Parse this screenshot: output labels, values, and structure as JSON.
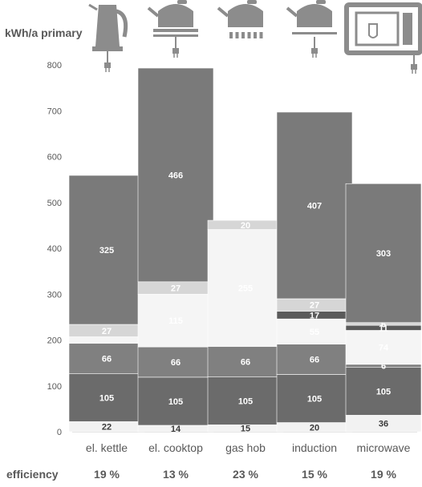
{
  "chart_data": {
    "type": "bar",
    "stacked": true,
    "ylabel": "kWh/a primary",
    "ylim": [
      0,
      800
    ],
    "yticks": [
      0,
      100,
      200,
      300,
      400,
      500,
      600,
      700,
      800
    ],
    "grid": false,
    "categories": [
      "el. kettle",
      "el. cooktop",
      "gas hob",
      "induction",
      "microwave"
    ],
    "icons": [
      "kettle-icon",
      "cooktop-pot-icon",
      "gas-hob-pot-icon",
      "induction-pot-icon",
      "microwave-icon"
    ],
    "efficiency_label": "efficiency",
    "efficiency": [
      "19 %",
      "13 %",
      "23 %",
      "15 %",
      "19 %"
    ],
    "stacks": [
      [
        {
          "value": 22,
          "label": "22",
          "color": "#f2f2f2",
          "text": "#3a3a3a"
        },
        {
          "value": 105,
          "label": "105",
          "color": "#6b6b6b",
          "text": "#ffffff"
        },
        {
          "value": 66,
          "label": "66",
          "color": "#808080",
          "text": "#ffffff"
        },
        {
          "value": 14,
          "label": "",
          "color": "#f5f5f5",
          "text": "#ffffff"
        },
        {
          "value": 27,
          "label": "27",
          "color": "#d6d6d6",
          "text": "#ffffff"
        },
        {
          "value": 325,
          "label": "325",
          "color": "#7a7a7a",
          "text": "#ffffff"
        }
      ],
      [
        {
          "value": 14,
          "label": "14",
          "color": "#f2f2f2",
          "text": "#3a3a3a"
        },
        {
          "value": 105,
          "label": "105",
          "color": "#6b6b6b",
          "text": "#ffffff"
        },
        {
          "value": 66,
          "label": "66",
          "color": "#808080",
          "text": "#ffffff"
        },
        {
          "value": 115,
          "label": "115",
          "color": "#f5f5f5",
          "text": "#ffffff"
        },
        {
          "value": 27,
          "label": "27",
          "color": "#d6d6d6",
          "text": "#ffffff"
        },
        {
          "value": 466,
          "label": "466",
          "color": "#7a7a7a",
          "text": "#ffffff"
        }
      ],
      [
        {
          "value": 15,
          "label": "15",
          "color": "#f2f2f2",
          "text": "#3a3a3a"
        },
        {
          "value": 105,
          "label": "105",
          "color": "#6b6b6b",
          "text": "#ffffff"
        },
        {
          "value": 66,
          "label": "66",
          "color": "#808080",
          "text": "#ffffff"
        },
        {
          "value": 255,
          "label": "255",
          "color": "#f5f5f5",
          "text": "#ffffff"
        },
        {
          "value": 20,
          "label": "20",
          "color": "#d6d6d6",
          "text": "#ffffff"
        }
      ],
      [
        {
          "value": 20,
          "label": "20",
          "color": "#f2f2f2",
          "text": "#3a3a3a"
        },
        {
          "value": 105,
          "label": "105",
          "color": "#6b6b6b",
          "text": "#ffffff"
        },
        {
          "value": 66,
          "label": "66",
          "color": "#808080",
          "text": "#ffffff"
        },
        {
          "value": 55,
          "label": "55",
          "color": "#f5f5f5",
          "text": "#ffffff"
        },
        {
          "value": 17,
          "label": "17",
          "color": "#5a5a5a",
          "text": "#ffffff"
        },
        {
          "value": 27,
          "label": "27",
          "color": "#d6d6d6",
          "text": "#ffffff"
        },
        {
          "value": 407,
          "label": "407",
          "color": "#7a7a7a",
          "text": "#ffffff"
        }
      ],
      [
        {
          "value": 36,
          "label": "36",
          "color": "#f2f2f2",
          "text": "#3a3a3a"
        },
        {
          "value": 105,
          "label": "105",
          "color": "#6b6b6b",
          "text": "#ffffff"
        },
        {
          "value": 6,
          "label": "6",
          "color": "#808080",
          "text": "#ffffff"
        },
        {
          "value": 74,
          "label": "74",
          "color": "#f5f5f5",
          "text": "#ffffff"
        },
        {
          "value": 11,
          "label": "11",
          "color": "#5a5a5a",
          "text": "#ffffff"
        },
        {
          "value": 6,
          "label": "6",
          "color": "#d6d6d6",
          "text": "#ffffff"
        },
        {
          "value": 303,
          "label": "303",
          "color": "#7a7a7a",
          "text": "#ffffff"
        }
      ]
    ]
  }
}
